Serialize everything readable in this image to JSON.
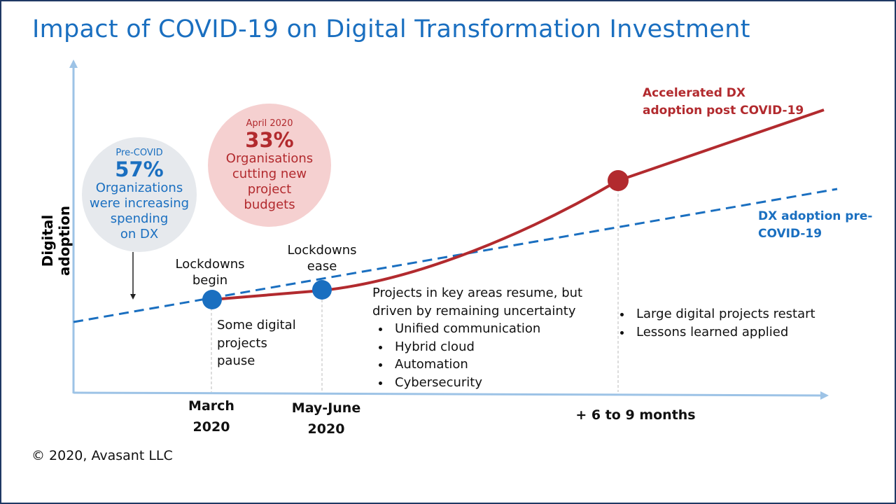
{
  "title": "Impact of COVID-19 on Digital Transformation Investment",
  "y_axis_label": "Digital adoption",
  "colors": {
    "title": "#1a6fc0",
    "pre_covid_line": "#1a6fc0",
    "post_covid_line": "#b22a2e",
    "axis": "#9dc3e6"
  },
  "callouts": {
    "pre_covid": {
      "caption": "Pre-COVID",
      "value": "57%",
      "text": [
        "Organizations",
        "were increasing",
        "spending",
        "on DX"
      ]
    },
    "april": {
      "caption": "April 2020",
      "value": "33%",
      "text": [
        "Organisations",
        "cutting new",
        "project",
        "budgets"
      ]
    }
  },
  "events": {
    "begin": [
      "Lockdowns",
      "begin"
    ],
    "ease": [
      "Lockdowns",
      "ease"
    ],
    "pause": [
      "Some digital",
      "projects",
      "pause"
    ]
  },
  "x_ticks": [
    [
      "March",
      "2020"
    ],
    [
      "May-June",
      "2020"
    ],
    [
      "+ 6 to 9 months"
    ]
  ],
  "resume": {
    "heading": [
      "Projects in key areas resume, but",
      "driven by remaining uncertainty"
    ],
    "items": [
      "Unified communication",
      "Hybrid cloud",
      "Automation",
      "Cybersecurity"
    ]
  },
  "restart": {
    "items": [
      "Large digital projects restart",
      "Lessons learned applied"
    ]
  },
  "series_labels": {
    "post": [
      "Accelerated DX",
      "adoption post COVID-19"
    ],
    "pre": [
      "DX adoption pre-",
      "COVID-19"
    ]
  },
  "copyright": "© 2020, Avasant LLC"
}
